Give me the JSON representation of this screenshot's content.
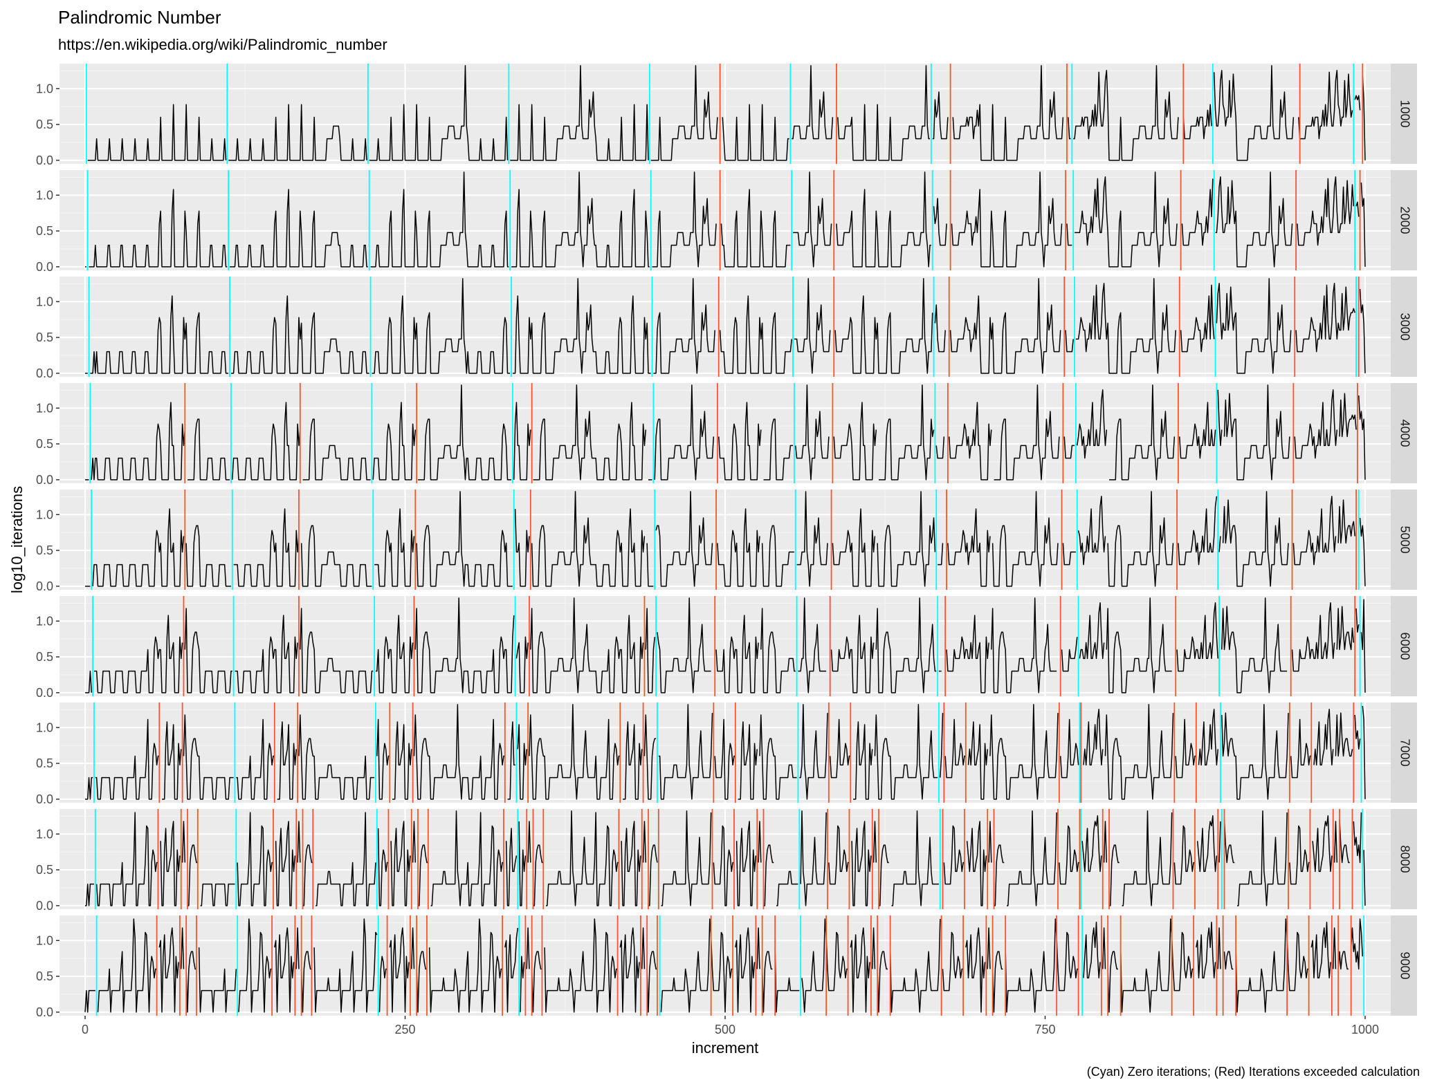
{
  "chart_data": {
    "type": "line",
    "title": "Palindromic Number",
    "subtitle": "https://en.wikipedia.org/wiki/Palindromic_number",
    "caption": "(Cyan) Zero iterations; (Red) Iterations exceeded calculation",
    "xlabel": "increment",
    "ylabel": "log10_iterations",
    "xlim": [
      -20,
      1020
    ],
    "ylim": [
      -0.05,
      1.35
    ],
    "xticks": [
      0,
      250,
      500,
      750,
      1000
    ],
    "yticks": [
      0.0,
      0.5,
      1.0
    ],
    "ytick_labels": [
      "0.0",
      "0.5",
      "1.0"
    ],
    "facet": "rows",
    "grid": true,
    "panels": [
      {
        "label": "1000",
        "offset": 1000,
        "zero": [
          1,
          111,
          221,
          331,
          441,
          551,
          661,
          771,
          881,
          991
        ],
        "exceeded": [
          496,
          587,
          676,
          767,
          858,
          949,
          998
        ]
      },
      {
        "label": "2000",
        "offset": 2000,
        "zero": [
          2,
          112,
          222,
          332,
          442,
          552,
          662,
          772,
          882,
          992
        ],
        "exceeded": [
          496,
          585,
          676,
          766,
          856,
          946,
          996
        ]
      },
      {
        "label": "3000",
        "offset": 3000,
        "zero": [
          3,
          113,
          223,
          333,
          443,
          553,
          663,
          773,
          883,
          993
        ],
        "exceeded": [
          495,
          585,
          675,
          765,
          855,
          945,
          995
        ]
      },
      {
        "label": "4000",
        "offset": 4000,
        "zero": [
          4,
          114,
          224,
          334,
          444,
          554,
          664,
          774,
          884,
          994
        ],
        "exceeded": [
          78,
          168,
          259,
          349,
          494,
          584,
          674,
          764,
          854,
          944,
          994
        ]
      },
      {
        "label": "5000",
        "offset": 5000,
        "zero": [
          5,
          115,
          225,
          335,
          445,
          555,
          665,
          775,
          885,
          995
        ],
        "exceeded": [
          78,
          167,
          258,
          348,
          493,
          583,
          673,
          763,
          853,
          943,
          993
        ]
      },
      {
        "label": "6000",
        "offset": 6000,
        "zero": [
          6,
          116,
          226,
          336,
          446,
          556,
          666,
          776,
          886,
          996
        ],
        "exceeded": [
          77,
          167,
          257,
          347,
          437,
          492,
          582,
          672,
          762,
          852,
          942,
          992
        ]
      },
      {
        "label": "7000",
        "offset": 7000,
        "zero": [
          7,
          117,
          227,
          337,
          447,
          557,
          667,
          777,
          887,
          997
        ],
        "exceeded": [
          58,
          76,
          148,
          166,
          238,
          256,
          328,
          346,
          418,
          436,
          491,
          508,
          581,
          598,
          671,
          688,
          761,
          778,
          851,
          868,
          941,
          958,
          991
        ]
      },
      {
        "label": "8000",
        "offset": 8000,
        "zero": [
          8,
          118,
          228,
          338,
          448,
          558,
          668,
          778,
          888,
          998
        ],
        "exceeded": [
          57,
          75,
          80,
          88,
          147,
          165,
          170,
          178,
          237,
          255,
          260,
          268,
          327,
          345,
          350,
          358,
          417,
          435,
          440,
          448,
          490,
          507,
          525,
          530,
          580,
          597,
          615,
          620,
          670,
          687,
          705,
          710,
          760,
          777,
          795,
          800,
          850,
          867,
          885,
          890,
          940,
          957,
          975,
          980,
          990
        ]
      },
      {
        "label": "9000",
        "offset": 9000,
        "zero": [
          9,
          119,
          229,
          339,
          449,
          559,
          669,
          779,
          889,
          999
        ],
        "exceeded": [
          56,
          74,
          79,
          87,
          146,
          164,
          169,
          177,
          236,
          254,
          259,
          267,
          326,
          344,
          349,
          357,
          416,
          434,
          439,
          447,
          489,
          506,
          524,
          529,
          539,
          579,
          596,
          614,
          619,
          629,
          669,
          686,
          704,
          709,
          719,
          759,
          776,
          794,
          799,
          809,
          849,
          866,
          884,
          889,
          899,
          939,
          956,
          974,
          979,
          989
        ]
      }
    ],
    "series": [
      {
        "name": "(Cyan) Zero iterations",
        "color": "#00ffff"
      },
      {
        "name": "(Red) Iterations exceeded calculation",
        "color": "#f8552b"
      }
    ],
    "line_color": "#000000"
  }
}
